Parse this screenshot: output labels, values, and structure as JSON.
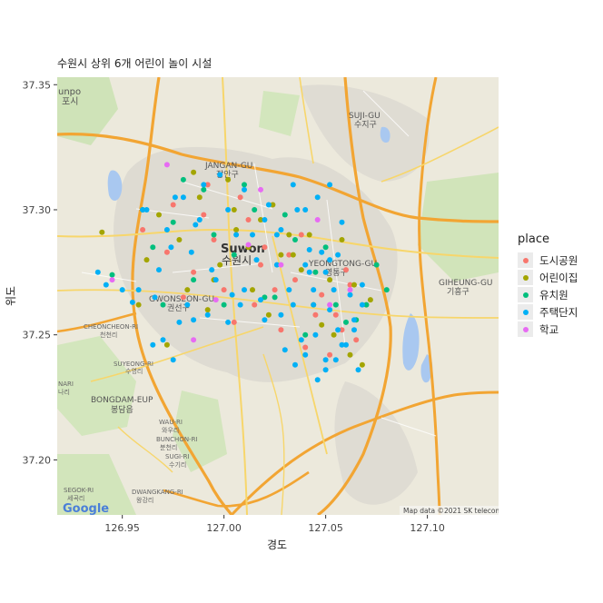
{
  "title": "수원시 상위 6개 어린이 놀이 시설",
  "chart_data": {
    "type": "scatter",
    "title": "수원시 상위 6개 어린이 놀이 시설",
    "xlabel": "경도",
    "ylabel": "위도",
    "xlim": [
      126.918,
      127.135
    ],
    "ylim": [
      37.178,
      37.353
    ],
    "x_ticks": [
      "126.95",
      "127.00",
      "127.05",
      "127.10"
    ],
    "x_tick_values": [
      126.95,
      127.0,
      127.05,
      127.1
    ],
    "y_ticks": [
      "37.20",
      "37.25",
      "37.30",
      "37.35"
    ],
    "y_tick_values": [
      37.2,
      37.25,
      37.3,
      37.35
    ],
    "legend_title": "place",
    "legend_position": "right",
    "series": [
      {
        "name": "도시공원",
        "color": "#F8766D",
        "x": [
          126.96,
          126.972,
          126.985,
          126.99,
          127.0,
          127.008,
          127.015,
          127.02,
          127.028,
          127.035,
          127.04,
          127.048,
          127.055,
          127.06,
          127.065,
          127.07,
          126.975,
          126.98,
          126.995,
          127.005,
          127.012,
          127.025,
          127.032,
          127.045,
          127.052,
          127.062,
          126.992,
          127.018,
          127.038,
          127.058
        ],
        "y": [
          37.292,
          37.283,
          37.275,
          37.298,
          37.268,
          37.305,
          37.262,
          37.285,
          37.252,
          37.272,
          37.245,
          37.266,
          37.258,
          37.276,
          37.248,
          37.262,
          37.302,
          37.265,
          37.288,
          37.255,
          37.296,
          37.268,
          37.282,
          37.258,
          37.242,
          37.27,
          37.31,
          37.278,
          37.29,
          37.252
        ]
      },
      {
        "name": "어린이집",
        "color": "#A3A500",
        "x": [
          126.968,
          126.978,
          126.988,
          126.998,
          127.006,
          127.014,
          127.024,
          127.034,
          127.044,
          127.054,
          127.064,
          126.962,
          126.982,
          127.002,
          127.022,
          127.042,
          127.062,
          126.94,
          126.958,
          126.972,
          126.992,
          127.012,
          127.032,
          127.052,
          127.072,
          126.985,
          127.005,
          127.028,
          127.048,
          127.068,
          126.995,
          127.018,
          127.038,
          127.058
        ],
        "y": [
          37.298,
          37.288,
          37.305,
          37.278,
          37.292,
          37.268,
          37.302,
          37.282,
          37.262,
          37.25,
          37.27,
          37.28,
          37.268,
          37.312,
          37.258,
          37.29,
          37.242,
          37.291,
          37.262,
          37.246,
          37.26,
          37.285,
          37.29,
          37.272,
          37.264,
          37.315,
          37.3,
          37.282,
          37.254,
          37.238,
          37.272,
          37.296,
          37.276,
          37.288
        ]
      },
      {
        "name": "유치원",
        "color": "#00BF7D",
        "x": [
          126.965,
          126.975,
          126.985,
          126.995,
          127.005,
          127.015,
          127.025,
          127.035,
          127.045,
          127.055,
          127.065,
          127.075,
          126.97,
          126.99,
          127.01,
          127.03,
          127.05,
          127.07,
          126.945,
          126.96,
          126.98,
          127.0,
          127.02,
          127.04,
          127.06,
          127.08
        ],
        "y": [
          37.285,
          37.295,
          37.272,
          37.29,
          37.282,
          37.3,
          37.265,
          37.288,
          37.275,
          37.262,
          37.256,
          37.278,
          37.262,
          37.308,
          37.31,
          37.298,
          37.285,
          37.262,
          37.274,
          37.3,
          37.312,
          37.262,
          37.265,
          37.25,
          37.255,
          37.268
        ]
      },
      {
        "name": "주택단지",
        "color": "#00B0F6",
        "x": [
          126.96,
          126.966,
          126.972,
          126.978,
          126.984,
          126.99,
          126.996,
          127.002,
          127.008,
          127.014,
          127.02,
          127.026,
          127.032,
          127.038,
          127.044,
          127.05,
          127.056,
          127.062,
          127.068,
          126.962,
          126.968,
          126.974,
          126.98,
          126.986,
          126.992,
          126.998,
          127.004,
          127.01,
          127.016,
          127.022,
          127.028,
          127.034,
          127.04,
          127.046,
          127.052,
          127.058,
          127.064,
          126.958,
          126.97,
          126.982,
          126.994,
          127.006,
          127.018,
          127.03,
          127.042,
          127.054,
          127.066,
          127.028,
          127.034,
          127.04,
          127.046,
          127.052,
          127.058,
          127.044,
          127.05,
          127.056,
          126.938,
          126.942,
          126.95,
          126.955,
          126.965,
          127.035,
          127.04,
          127.045,
          127.05,
          127.055,
          127.06,
          127.048,
          127.042,
          127.052,
          127.01,
          127.002,
          126.988,
          126.976,
          127.02,
          127.026,
          127.036,
          127.064,
          127.068,
          126.975,
          126.985
        ],
        "y": [
          37.3,
          37.265,
          37.292,
          37.255,
          37.283,
          37.31,
          37.272,
          37.3,
          37.262,
          37.29,
          37.256,
          37.278,
          37.268,
          37.248,
          37.262,
          37.24,
          37.252,
          37.266,
          37.27,
          37.3,
          37.276,
          37.285,
          37.305,
          37.294,
          37.258,
          37.314,
          37.266,
          37.308,
          37.28,
          37.302,
          37.258,
          37.262,
          37.278,
          37.232,
          37.26,
          37.246,
          37.252,
          37.268,
          37.248,
          37.262,
          37.276,
          37.29,
          37.264,
          37.244,
          37.284,
          37.268,
          37.236,
          37.292,
          37.31,
          37.3,
          37.305,
          37.31,
          37.295,
          37.268,
          37.275,
          37.282,
          37.275,
          37.27,
          37.268,
          37.263,
          37.246,
          37.238,
          37.242,
          37.25,
          37.236,
          37.24,
          37.246,
          37.283,
          37.275,
          37.28,
          37.268,
          37.255,
          37.296,
          37.305,
          37.296,
          37.29,
          37.3,
          37.256,
          37.262,
          37.24,
          37.256
        ]
      },
      {
        "name": "학교",
        "color": "#E76BF3",
        "x": [
          126.945,
          126.972,
          126.996,
          127.012,
          127.028,
          127.046,
          127.062,
          126.985,
          127.018,
          127.052
        ],
        "y": [
          37.272,
          37.318,
          37.264,
          37.286,
          37.278,
          37.296,
          37.268,
          37.248,
          37.308,
          37.262
        ]
      }
    ],
    "legend": [
      "도시공원",
      "어린이집",
      "유치원",
      "주택단지",
      "학교"
    ],
    "background": "map",
    "grid": false,
    "map_labels": {
      "jangan": "JANGAN-GU",
      "jangan_ko": "장안구",
      "suwon": "Suwon",
      "suwon_ko": "수원시",
      "gwonseon": "GWONSEON-GU",
      "gwonseon_ko": "권선구",
      "yeongtong": "YEONGTONG-GU",
      "yeongtong_ko": "영통구",
      "suji": "SUJI-GU",
      "suji_ko": "수지구",
      "giheung": "GIHEUNG-GU",
      "giheung_ko": "기흥구",
      "gunpo": "unpo",
      "gunpo_ko": "포시",
      "cheoncheon": "CHEONCHEON-RI",
      "cheoncheon_ko": "천천리",
      "suyeong": "SUYEONG-RI",
      "suyeong_ko": "수영리",
      "nari": "NARI",
      "nari_ko": "나리",
      "bongdam": "BONGDAM-EUP",
      "bongdam_ko": "봉담읍",
      "wau": "WAU-RI",
      "wau_ko": "와우리",
      "bunchon": "BUNCHON-RI",
      "bunchon_ko": "분천리",
      "sugi": "SUGI-RI",
      "sugi_ko": "수기리",
      "dwangkang": "DWANGKANG-RI",
      "dwangkang_ko": "왕강리",
      "segok": "SEGOK-RI",
      "segok_ko": "세곡리"
    },
    "google_logo": "Google",
    "attribution": "Map data ©2021 SK telecom"
  }
}
